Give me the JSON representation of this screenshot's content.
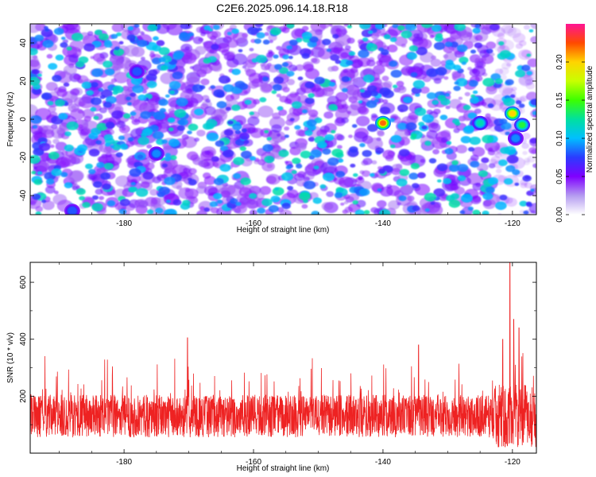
{
  "title": "C2E6.2025.096.14.18.R18",
  "colors": {
    "snr_line": "#ee2222",
    "colormap": [
      "#ffffff",
      "#b49bf0",
      "#7f00ff",
      "#2b3bff",
      "#00bfff",
      "#00e0a0",
      "#3cff00",
      "#c8ff00",
      "#ffd400",
      "#ff4a00",
      "#ff1493"
    ]
  },
  "chart_data": [
    {
      "type": "heatmap",
      "name": "spectrogram",
      "xlabel": "Height of straight line (km)",
      "ylabel": "Frequency (Hz)",
      "xlim": [
        -194.5,
        -116.3
      ],
      "ylim": [
        -50,
        50
      ],
      "xticks": [
        -180,
        -160,
        -140,
        -120
      ],
      "yticks": [
        -40,
        -20,
        0,
        20,
        40
      ],
      "grid": false,
      "colorbar": {
        "label": "Normalized spectral amplitude",
        "range": [
          0,
          0.25
        ],
        "ticks": [
          "0.00",
          "0.05",
          "0.10",
          "0.15",
          "0.20"
        ]
      },
      "hotspots": [
        {
          "x": -140,
          "y": -2,
          "value": 0.22
        },
        {
          "x": -125,
          "y": -2,
          "value": 0.12
        },
        {
          "x": -120,
          "y": 3,
          "value": 0.2
        },
        {
          "x": -118.5,
          "y": -3,
          "value": 0.14
        },
        {
          "x": -119.5,
          "y": -10,
          "value": 0.09
        },
        {
          "x": -175,
          "y": -18,
          "value": 0.09
        },
        {
          "x": -188,
          "y": -48,
          "value": 0.08
        },
        {
          "x": -178,
          "y": 25,
          "value": 0.08
        }
      ]
    },
    {
      "type": "line",
      "name": "snr",
      "xlabel": "Height of straight line (km)",
      "ylabel": "SNR (10 * v/v)",
      "xlim": [
        -194.5,
        -116.3
      ],
      "ylim": [
        0,
        670
      ],
      "xticks": [
        -180,
        -160,
        -140,
        -120
      ],
      "yticks": [
        200,
        400,
        600
      ],
      "grid": false,
      "baseline": 130,
      "typical_peak": 270,
      "notable_peaks": [
        {
          "x": -170.2,
          "y": 405
        },
        {
          "x": -134.5,
          "y": 380
        },
        {
          "x": -121.5,
          "y": 400
        },
        {
          "x": -120.4,
          "y": 670
        },
        {
          "x": -119.8,
          "y": 470
        },
        {
          "x": -119.0,
          "y": 440
        }
      ]
    }
  ]
}
